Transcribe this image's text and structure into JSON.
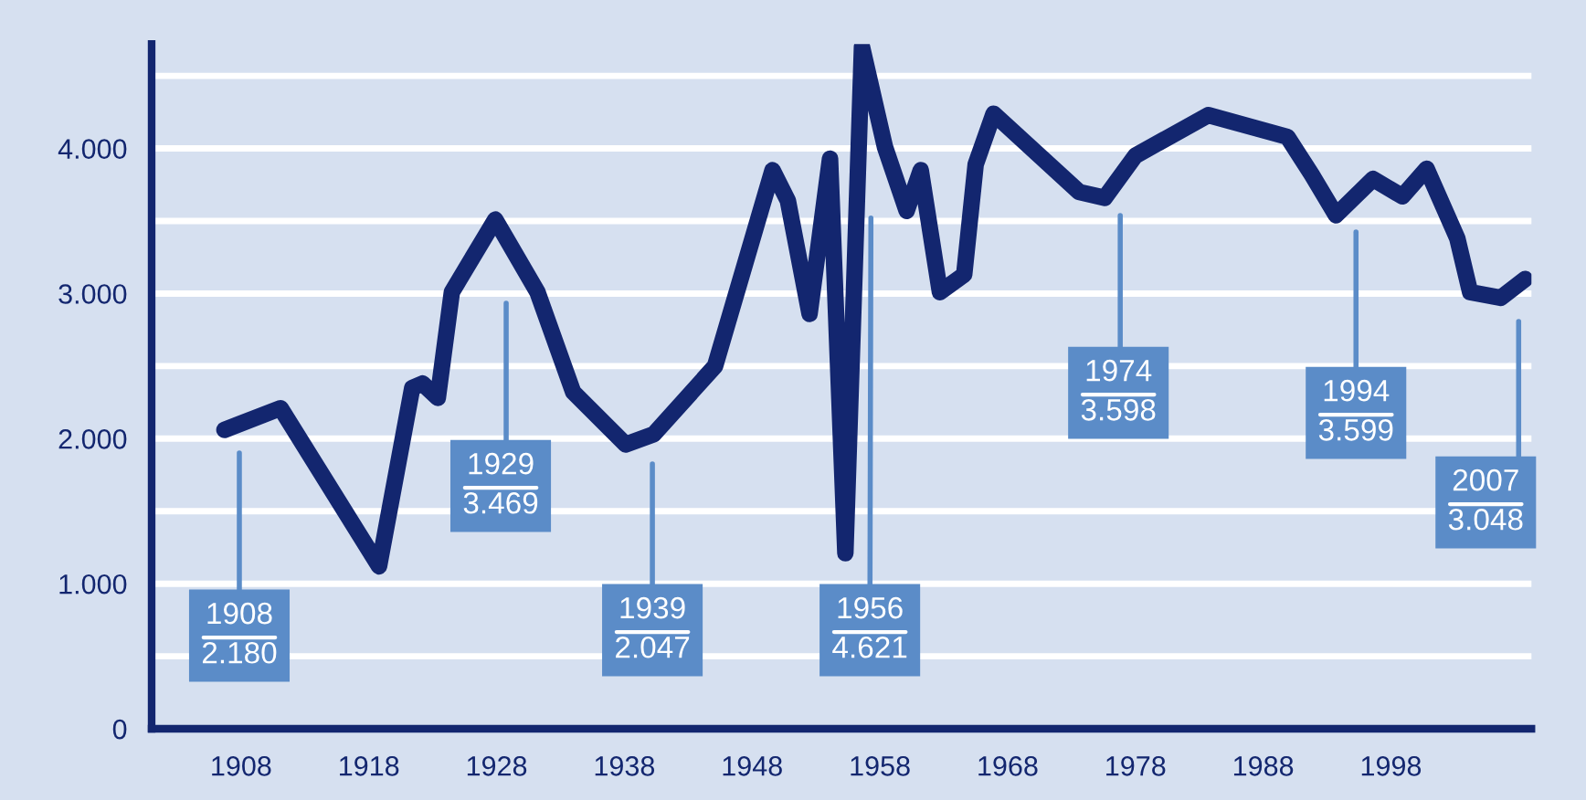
{
  "chart_data": {
    "type": "line",
    "x": [
      1906.7,
      1911.1,
      1918.8,
      1921.4,
      1922.2,
      1923.4,
      1924.5,
      1927.9,
      1931.2,
      1934.0,
      1938.1,
      1940.3,
      1945.1,
      1949.6,
      1950.8,
      1952.5,
      1954.1,
      1955.3,
      1956.6,
      1958.4,
      1960.1,
      1961.2,
      1962.7,
      1964.6,
      1965.5,
      1966.9,
      1973.6,
      1975.6,
      1978.0,
      1983.7,
      1989.9,
      1991.8,
      1993.7,
      1996.6,
      1998.9,
      2000.8,
      2003.2,
      2004.2,
      2006.6,
      2008.5
    ],
    "series": [
      {
        "color": "#13266f",
        "values": [
          2060,
          2210,
          1120,
          2350,
          2380,
          2280,
          3010,
          3510,
          3010,
          2320,
          1960,
          2030,
          2500,
          3850,
          3640,
          2860,
          3930,
          1210,
          4700,
          4010,
          3570,
          3850,
          3010,
          3130,
          3890,
          4240,
          3700,
          3660,
          3950,
          4230,
          4080,
          3820,
          3540,
          3790,
          3670,
          3860,
          3380,
          3010,
          2970,
          3100
        ]
      }
    ],
    "xlim": [
      1901,
      2009
    ],
    "ylim": [
      0,
      4720
    ],
    "xticks": [
      1908,
      1918,
      1928,
      1938,
      1948,
      1958,
      1968,
      1978,
      1988,
      1998
    ],
    "yticks": [
      0,
      {
        "value": 500,
        "label": null
      },
      {
        "value": 1000,
        "label": "1.000"
      },
      {
        "value": 1500,
        "label": null
      },
      {
        "value": 2000,
        "label": "2.000"
      },
      {
        "value": 2500,
        "label": null
      },
      {
        "value": 3000,
        "label": "3.000"
      },
      {
        "value": 3500,
        "label": null
      },
      {
        "value": 4000,
        "label": "4.000"
      },
      {
        "value": 4500,
        "label": null
      }
    ],
    "grid": "y",
    "legend": false,
    "marker": "none",
    "line_style": "solid",
    "annotations": [
      "1908\n2.180",
      "1929\n3.469",
      "1939\n2.047",
      {
        "text": "1956\n4.621",
        "x": 1957.3,
        "y": 3520
      },
      "1974\n3.598",
      "1994\n3.599",
      "2007\n3.048"
    ]
  }
}
